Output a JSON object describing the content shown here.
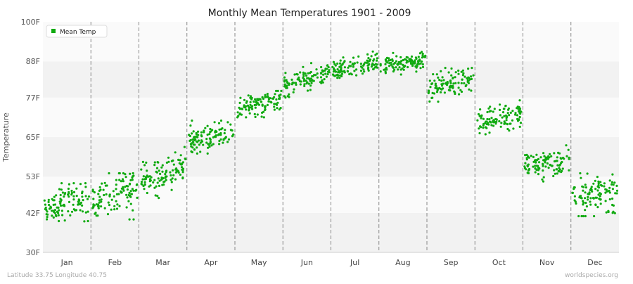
{
  "chart_data": {
    "type": "scatter",
    "title": "Monthly Mean Temperatures 1901 - 2009",
    "xlabel": "",
    "ylabel": "Temperature",
    "y_ticks": [
      "30F",
      "42F",
      "53F",
      "65F",
      "77F",
      "88F",
      "100F"
    ],
    "y_tick_values": [
      30,
      42,
      53,
      65,
      77,
      88,
      100
    ],
    "ylim": [
      30,
      100
    ],
    "categories": [
      "Jan",
      "Feb",
      "Mar",
      "Apr",
      "May",
      "Jun",
      "Jul",
      "Aug",
      "Sep",
      "Oct",
      "Nov",
      "Dec"
    ],
    "legend": {
      "label": "Mean Temp",
      "position": "top-left"
    },
    "grid": "alternating horizontal bands, dashed vertical month separators",
    "series": [
      {
        "name": "Mean Temp",
        "color": "#11aa11",
        "monthly_profile": [
          {
            "month": "Jan",
            "start": 44.5,
            "end": 45.5,
            "spread": 3.0,
            "min": 37,
            "max": 51
          },
          {
            "month": "Feb",
            "start": 46.0,
            "end": 49.0,
            "spread": 3.0,
            "min": 40,
            "max": 54
          },
          {
            "month": "Mar",
            "start": 51.5,
            "end": 56.0,
            "spread": 3.0,
            "min": 45,
            "max": 62
          },
          {
            "month": "Apr",
            "start": 63.0,
            "end": 67.0,
            "spread": 2.2,
            "min": 60,
            "max": 70
          },
          {
            "month": "May",
            "start": 73.0,
            "end": 77.0,
            "spread": 2.0,
            "min": 71,
            "max": 79
          },
          {
            "month": "Jun",
            "start": 81.0,
            "end": 84.5,
            "spread": 1.8,
            "min": 77,
            "max": 88
          },
          {
            "month": "Jul",
            "start": 85.5,
            "end": 87.5,
            "spread": 1.5,
            "min": 83,
            "max": 92
          },
          {
            "month": "Aug",
            "start": 86.0,
            "end": 88.5,
            "spread": 1.5,
            "min": 84,
            "max": 91
          },
          {
            "month": "Sep",
            "start": 80.0,
            "end": 82.0,
            "spread": 2.0,
            "min": 75,
            "max": 86
          },
          {
            "month": "Oct",
            "start": 70.0,
            "end": 72.0,
            "spread": 2.0,
            "min": 65,
            "max": 77
          },
          {
            "month": "Nov",
            "start": 57.0,
            "end": 57.0,
            "spread": 2.0,
            "min": 51,
            "max": 66
          },
          {
            "month": "Dec",
            "start": 47.0,
            "end": 47.0,
            "spread": 3.0,
            "min": 41,
            "max": 54
          }
        ]
      }
    ]
  },
  "footer": {
    "location": "Latitude 33.75 Longitude 40.75",
    "source": "worldspecies.org"
  }
}
